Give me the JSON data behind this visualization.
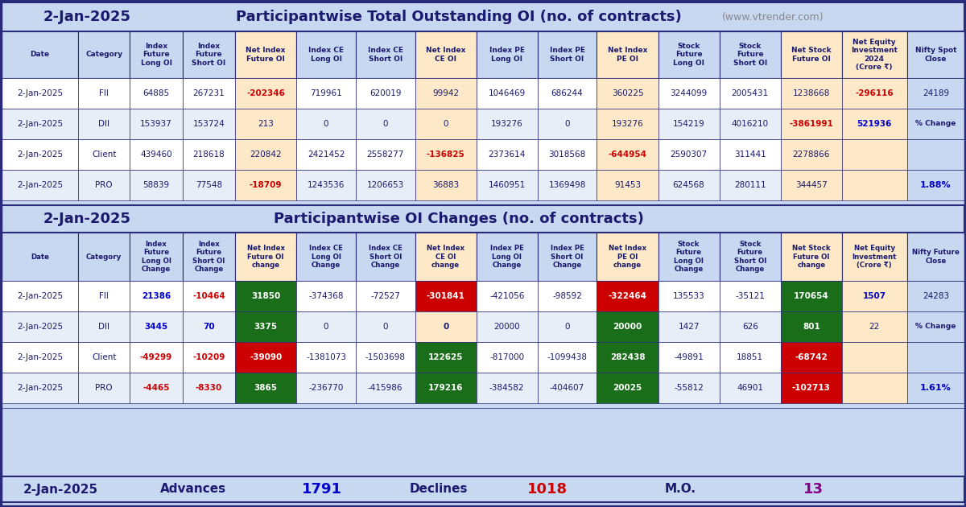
{
  "title1_date": "2-Jan-2025",
  "title1_main": "Participantwise Total Outstanding OI (no. of contracts)",
  "title1_web": "(www.vtrender.com)",
  "title2_date": "2-Jan-2025",
  "title2_main": "Participantwise OI Changes (no. of contracts)",
  "footer_date": "2-Jan-2025",
  "footer_advances": "Advances",
  "footer_advances_val": "1791",
  "footer_declines": "Declines",
  "footer_declines_val": "1018",
  "footer_mo": "M.O.",
  "footer_mo_val": "13",
  "bg_color": "#c8d8f0",
  "col_headers1": [
    "Date",
    "Category",
    "Index\nFuture\nLong OI",
    "Index\nFuture\nShort OI",
    "Net Index\nFuture OI",
    "Index CE\nLong OI",
    "Index CE\nShort OI",
    "Net Index\nCE OI",
    "Index PE\nLong OI",
    "Index PE\nShort OI",
    "Net Index\nPE OI",
    "Stock\nFuture\nLong OI",
    "Stock\nFuture\nShort OI",
    "Net Stock\nFuture OI",
    "Net Equity\nInvestment\n2024\n(Crore ₹)",
    "Nifty Spot\nClose"
  ],
  "col_headers2": [
    "Date",
    "Category",
    "Index\nFuture\nLong OI\nChange",
    "Index\nFuture\nShort OI\nChange",
    "Net Index\nFuture OI\nchange",
    "Index CE\nLong OI\nChange",
    "Index CE\nShort OI\nChange",
    "Net Index\nCE OI\nchange",
    "Index PE\nLong OI\nChange",
    "Index PE\nShort OI\nChange",
    "Net Index\nPE OI\nchange",
    "Stock\nFuture\nLong OI\nChange",
    "Stock\nFuture\nShort OI\nChange",
    "Net Stock\nFuture OI\nchange",
    "Net Equity\nInvestment\n(Crore ₹)",
    "Nifty Future\nClose"
  ],
  "table1_data": [
    [
      "2-Jan-2025",
      "FII",
      "64885",
      "267231",
      "-202346",
      "719961",
      "620019",
      "99942",
      "1046469",
      "686244",
      "360225",
      "3244099",
      "2005431",
      "1238668",
      "-296116",
      "24189"
    ],
    [
      "2-Jan-2025",
      "DII",
      "153937",
      "153724",
      "213",
      "0",
      "0",
      "0",
      "193276",
      "0",
      "193276",
      "154219",
      "4016210",
      "-3861991",
      "521936",
      ""
    ],
    [
      "2-Jan-2025",
      "Client",
      "439460",
      "218618",
      "220842",
      "2421452",
      "2558277",
      "-136825",
      "2373614",
      "3018568",
      "-644954",
      "2590307",
      "311441",
      "2278866",
      "",
      ""
    ],
    [
      "2-Jan-2025",
      "PRO",
      "58839",
      "77548",
      "-18709",
      "1243536",
      "1206653",
      "36883",
      "1460951",
      "1369498",
      "91453",
      "624568",
      "280111",
      "344457",
      "",
      ""
    ]
  ],
  "table1_special_colors": {
    "0,4": "red",
    "0,14": "red",
    "1,13": "red",
    "1,14": "blue",
    "2,7": "red",
    "2,10": "red",
    "3,4": "red",
    "3,15": "blue_pct"
  },
  "table2_data": [
    [
      "2-Jan-2025",
      "FII",
      "21386",
      "-10464",
      "31850",
      "-374368",
      "-72527",
      "-301841",
      "-421056",
      "-98592",
      "-322464",
      "135533",
      "-35121",
      "170654",
      "1507",
      "24283"
    ],
    [
      "2-Jan-2025",
      "DII",
      "3445",
      "70",
      "3375",
      "0",
      "0",
      "0",
      "20000",
      "0",
      "20000",
      "1427",
      "626",
      "801",
      "22",
      ""
    ],
    [
      "2-Jan-2025",
      "Client",
      "-49299",
      "-10209",
      "-39090",
      "-1381073",
      "-1503698",
      "122625",
      "-817000",
      "-1099438",
      "282438",
      "-49891",
      "18851",
      "-68742",
      "",
      ""
    ],
    [
      "2-Jan-2025",
      "PRO",
      "-4465",
      "-8330",
      "3865",
      "-236770",
      "-415986",
      "179216",
      "-384582",
      "-404607",
      "20025",
      "-55812",
      "46901",
      "-102713",
      "",
      ""
    ]
  ],
  "table2_special_colors": {
    "0,2": "blue",
    "0,3": "red",
    "0,14": "blue",
    "1,2": "blue",
    "1,3": "blue",
    "2,2": "red",
    "2,3": "red",
    "3,2": "red",
    "3,3": "red",
    "3,15": "blue_pct"
  },
  "pct_change_val1": "1.88%",
  "pct_change_val2": "1.61%"
}
